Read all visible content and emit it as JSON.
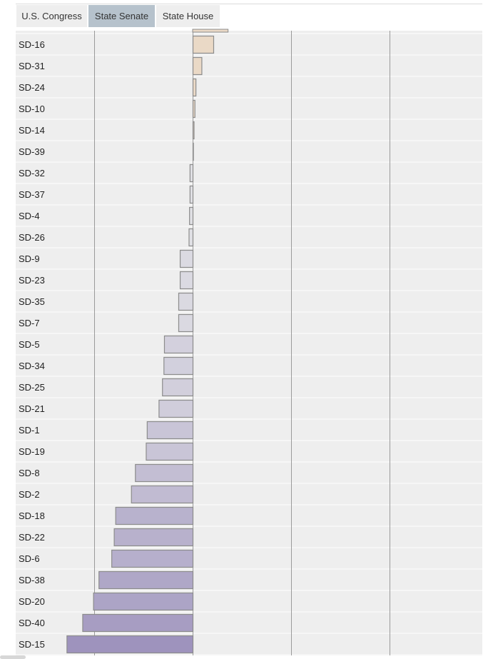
{
  "tabs": [
    {
      "label": "U.S. Congress",
      "active": false
    },
    {
      "label": "State Senate",
      "active": true
    },
    {
      "label": "State House",
      "active": false
    }
  ],
  "chart_data": {
    "type": "bar",
    "orientation": "horizontal",
    "title": "",
    "xlabel": "",
    "ylabel": "",
    "grid": true,
    "xlim": [
      -1.3,
      3.0
    ],
    "categories": [
      "SD-16",
      "SD-31",
      "SD-24",
      "SD-10",
      "SD-14",
      "SD-39",
      "SD-32",
      "SD-37",
      "SD-4",
      "SD-26",
      "SD-9",
      "SD-23",
      "SD-35",
      "SD-7",
      "SD-5",
      "SD-34",
      "SD-25",
      "SD-21",
      "SD-1",
      "SD-19",
      "SD-8",
      "SD-2",
      "SD-18",
      "SD-22",
      "SD-6",
      "SD-38",
      "SD-20",
      "SD-40",
      "SD-15"
    ],
    "values": [
      0.21,
      0.09,
      0.03,
      0.02,
      0.01,
      0.0,
      -0.03,
      -0.03,
      -0.035,
      -0.04,
      -0.13,
      -0.13,
      -0.145,
      -0.145,
      -0.29,
      -0.295,
      -0.31,
      -0.345,
      -0.465,
      -0.475,
      -0.585,
      -0.625,
      -0.785,
      -0.8,
      -0.825,
      -0.955,
      -1.01,
      -1.12,
      -1.28
    ],
    "partial_bar_above_value": 0.36,
    "colors": {
      "positive": "#ead9c6",
      "negative_light": "#e2e2e6",
      "negative_dark": "#9e93bd",
      "bar_stroke": "#8c8c8c",
      "row_bg": "#eeeeee",
      "grid": "#9a9a9a"
    }
  }
}
